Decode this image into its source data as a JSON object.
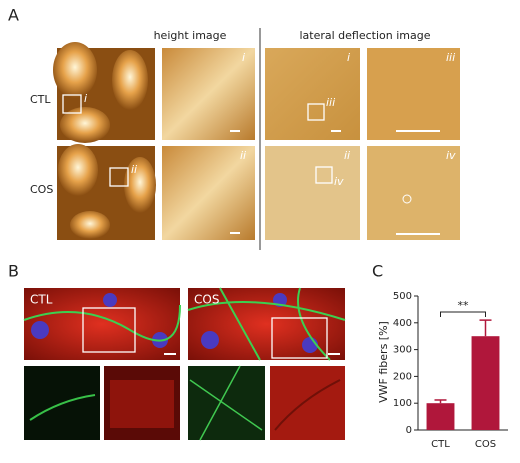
{
  "panel_a": {
    "label": "A",
    "headers": [
      "height image",
      "lateral deflection image"
    ],
    "rows": [
      "CTL",
      "COS"
    ],
    "insets": [
      "i",
      "ii",
      "iii",
      "iv"
    ]
  },
  "panel_b": {
    "label": "B",
    "tags": [
      "CTL",
      "COS"
    ]
  },
  "chart_data": {
    "type": "bar",
    "label": "C",
    "y_label": "VWF fibers [%]",
    "categories": [
      "CTL",
      "COS"
    ],
    "values": [
      100,
      350
    ],
    "errors": [
      12,
      60
    ],
    "color": "#b0173b",
    "ylim": [
      0,
      500
    ],
    "yticks": [
      0,
      100,
      200,
      300,
      400,
      500
    ],
    "significance": "**"
  }
}
